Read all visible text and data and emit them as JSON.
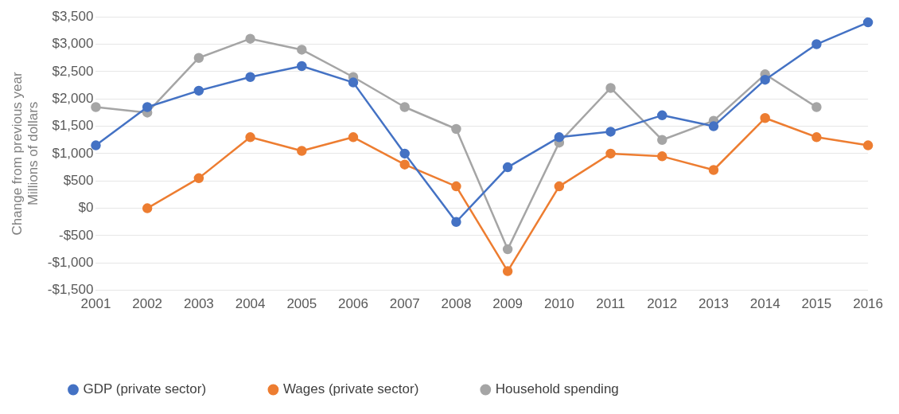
{
  "chart_data": {
    "type": "line",
    "ylabel": "Change from previous year\nMillions of dollars",
    "categories": [
      "2001",
      "2002",
      "2003",
      "2004",
      "2005",
      "2006",
      "2007",
      "2008",
      "2009",
      "2010",
      "2011",
      "2012",
      "2013",
      "2014",
      "2015",
      "2016"
    ],
    "series": [
      {
        "name": "GDP (private sector)",
        "color": "#4472c4",
        "values": [
          1150,
          1850,
          2150,
          2400,
          2600,
          2300,
          1000,
          -250,
          750,
          1300,
          1400,
          1700,
          1500,
          2350,
          3000,
          3400
        ]
      },
      {
        "name": "Wages (private sector)",
        "color": "#ed7d31",
        "values": [
          null,
          0,
          550,
          1300,
          1050,
          1300,
          800,
          400,
          -1150,
          400,
          1000,
          950,
          700,
          1650,
          1300,
          1150
        ]
      },
      {
        "name": "Household spending",
        "color": "#a5a5a5",
        "values": [
          1850,
          1750,
          2750,
          3100,
          2900,
          2400,
          1850,
          1450,
          -750,
          1200,
          2200,
          1250,
          1600,
          2450,
          1850,
          null
        ]
      }
    ],
    "ylim": [
      -1500,
      3500
    ],
    "yticks": [
      {
        "value": -1500,
        "label": "-$1,500"
      },
      {
        "value": -1000,
        "label": "-$1,000"
      },
      {
        "value": -500,
        "label": "-$500"
      },
      {
        "value": 0,
        "label": "$0"
      },
      {
        "value": 500,
        "label": "$500"
      },
      {
        "value": 1000,
        "label": "$1,000"
      },
      {
        "value": 1500,
        "label": "$1,500"
      },
      {
        "value": 2000,
        "label": "$2,000"
      },
      {
        "value": 2500,
        "label": "$2,500"
      },
      {
        "value": 3000,
        "label": "$3,000"
      },
      {
        "value": 3500,
        "label": "$3,500"
      }
    ],
    "grid": "y",
    "legend": "bottom",
    "marker": "circle",
    "line_style": "solid"
  }
}
